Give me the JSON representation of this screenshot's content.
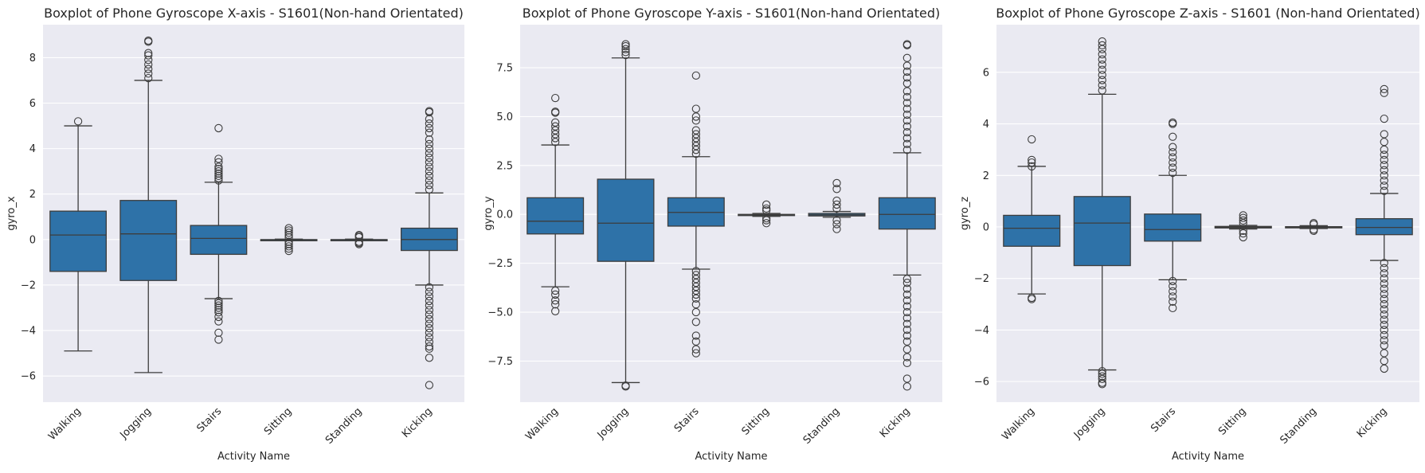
{
  "chart_data": [
    {
      "type": "boxplot",
      "title": "Boxplot of Phone Gyroscope X-axis - S1601(Non-hand Orientated)",
      "xlabel": "Activity Name",
      "ylabel": "gyro_x",
      "categories": [
        "Walking",
        "Jogging",
        "Stairs",
        "Sitting",
        "Standing",
        "Kicking"
      ],
      "yticks": [
        "−6",
        "−4",
        "−2",
        "0",
        "2",
        "4",
        "6",
        "8"
      ],
      "ytick_values": [
        -6,
        -4,
        -2,
        0,
        2,
        4,
        6,
        8
      ],
      "ylim": [
        -7.15,
        9.45
      ],
      "grid": true,
      "box_color": "#2e72a8",
      "boxes": [
        {
          "whisker_low": -4.9,
          "q1": -1.4,
          "median": 0.2,
          "q3": 1.25,
          "whisker_high": 5.0,
          "outliers": [
            5.2
          ]
        },
        {
          "whisker_low": -5.85,
          "q1": -1.8,
          "median": 0.25,
          "q3": 1.72,
          "whisker_high": 7.0,
          "outliers": [
            7.1,
            7.3,
            7.5,
            7.7,
            7.9,
            8.1,
            8.2,
            8.7,
            8.75
          ]
        },
        {
          "whisker_low": -2.6,
          "q1": -0.65,
          "median": 0.05,
          "q3": 0.62,
          "whisker_high": 2.52,
          "outliers": [
            -2.7,
            -2.8,
            -2.9,
            -3.0,
            -3.1,
            -3.2,
            -3.4,
            -3.6,
            -4.1,
            -4.4,
            2.6,
            2.7,
            2.8,
            2.9,
            3.0,
            3.1,
            3.2,
            3.4,
            3.55,
            4.9
          ]
        },
        {
          "whisker_low": -0.05,
          "q1": -0.03,
          "median": -0.01,
          "q3": 0.0,
          "whisker_high": 0.02,
          "outliers": [
            -0.1,
            -0.2,
            -0.3,
            -0.4,
            -0.5,
            0.1,
            0.2,
            0.3,
            0.4,
            0.5
          ]
        },
        {
          "whisker_low": -0.05,
          "q1": -0.03,
          "median": -0.01,
          "q3": 0.0,
          "whisker_high": 0.02,
          "outliers": [
            -0.1,
            -0.15,
            -0.2,
            0.1,
            0.15,
            0.2
          ]
        },
        {
          "whisker_low": -2.0,
          "q1": -0.48,
          "median": 0.0,
          "q3": 0.5,
          "whisker_high": 2.05,
          "outliers": [
            -2.1,
            -2.3,
            -2.5,
            -2.7,
            -2.9,
            -3.1,
            -3.3,
            -3.5,
            -3.7,
            -3.9,
            -4.1,
            -4.3,
            -4.5,
            -4.7,
            -4.8,
            -5.2,
            -6.4,
            2.2,
            2.4,
            2.6,
            2.8,
            3.0,
            3.2,
            3.4,
            3.6,
            3.8,
            4.0,
            4.2,
            4.4,
            4.7,
            4.9,
            5.1,
            5.3,
            5.6,
            5.65
          ]
        }
      ]
    },
    {
      "type": "boxplot",
      "title": "Boxplot of Phone Gyroscope Y-axis - S1601(Non-hand Orientated)",
      "xlabel": "Activity Name",
      "ylabel": "gyro_y",
      "categories": [
        "Walking",
        "Jogging",
        "Stairs",
        "Sitting",
        "Standing",
        "Kicking"
      ],
      "yticks": [
        "−7.5",
        "−5.0",
        "−2.5",
        "0.0",
        "2.5",
        "5.0",
        "7.5"
      ],
      "ytick_values": [
        -7.5,
        -5.0,
        -2.5,
        0.0,
        2.5,
        5.0,
        7.5
      ],
      "ylim": [
        -9.6,
        9.7
      ],
      "grid": true,
      "box_color": "#2e72a8",
      "boxes": [
        {
          "whisker_low": -3.7,
          "q1": -1.0,
          "median": -0.35,
          "q3": 0.85,
          "whisker_high": 3.55,
          "outliers": [
            -3.9,
            -4.1,
            -4.4,
            -4.6,
            -4.95,
            3.7,
            3.9,
            4.1,
            4.3,
            4.5,
            4.7,
            5.2,
            5.25,
            5.95
          ]
        },
        {
          "whisker_low": -8.6,
          "q1": -2.4,
          "median": -0.45,
          "q3": 1.8,
          "whisker_high": 8.0,
          "outliers": [
            -8.75,
            -8.8,
            8.15,
            8.3,
            8.45,
            8.6,
            8.7
          ]
        },
        {
          "whisker_low": -2.8,
          "q1": -0.6,
          "median": 0.1,
          "q3": 0.85,
          "whisker_high": 2.95,
          "outliers": [
            -2.9,
            -3.1,
            -3.3,
            -3.5,
            -3.7,
            -3.9,
            -4.1,
            -4.3,
            -4.6,
            -5.0,
            -5.5,
            -6.2,
            -6.5,
            -6.9,
            -7.1,
            3.1,
            3.3,
            3.5,
            3.7,
            3.9,
            4.1,
            4.3,
            4.8,
            5.0,
            5.4,
            7.1
          ]
        },
        {
          "whisker_low": -0.1,
          "q1": -0.05,
          "median": -0.02,
          "q3": 0.0,
          "whisker_high": 0.05,
          "outliers": [
            -0.2,
            -0.3,
            -0.45,
            0.2,
            0.3,
            0.5
          ]
        },
        {
          "whisker_low": -0.15,
          "q1": -0.08,
          "median": -0.02,
          "q3": 0.05,
          "whisker_high": 0.15,
          "outliers": [
            -0.3,
            -0.5,
            -0.75,
            0.3,
            0.5,
            0.7,
            1.3,
            1.6
          ]
        },
        {
          "whisker_low": -3.1,
          "q1": -0.75,
          "median": 0.0,
          "q3": 0.85,
          "whisker_high": 3.15,
          "outliers": [
            -3.3,
            -3.5,
            -3.8,
            -4.1,
            -4.4,
            -4.7,
            -5.0,
            -5.3,
            -5.6,
            -5.9,
            -6.2,
            -6.5,
            -6.9,
            -7.3,
            -7.6,
            -8.4,
            -8.8,
            3.3,
            3.6,
            3.9,
            4.2,
            4.5,
            4.8,
            5.1,
            5.4,
            5.7,
            6.0,
            6.3,
            6.7,
            7.0,
            7.3,
            7.6,
            8.0,
            8.65,
            8.7
          ]
        }
      ]
    },
    {
      "type": "boxplot",
      "title": "Boxplot of Phone Gyroscope Z-axis - S1601 (Non-hand Orientated)",
      "xlabel": "Activity Name",
      "ylabel": "gyro_z",
      "categories": [
        "Walking",
        "Jogging",
        "Stairs",
        "Sitting",
        "Standing",
        "Kicking"
      ],
      "yticks": [
        "−6",
        "−4",
        "−2",
        "0",
        "2",
        "4",
        "6"
      ],
      "ytick_values": [
        -6,
        -4,
        -2,
        0,
        2,
        4,
        6
      ],
      "ylim": [
        -6.8,
        7.85
      ],
      "grid": true,
      "box_color": "#2e72a8",
      "boxes": [
        {
          "whisker_low": -2.6,
          "q1": -0.75,
          "median": -0.05,
          "q3": 0.45,
          "whisker_high": 2.35,
          "outliers": [
            -2.75,
            -2.8,
            2.35,
            2.5,
            2.6,
            3.4
          ]
        },
        {
          "whisker_low": -5.55,
          "q1": -1.5,
          "median": 0.15,
          "q3": 1.18,
          "whisker_high": 5.15,
          "outliers": [
            -5.6,
            -5.7,
            -5.8,
            -5.9,
            -6.05,
            -6.1,
            5.3,
            5.5,
            5.7,
            5.9,
            6.1,
            6.3,
            6.5,
            6.7,
            6.9,
            7.05,
            7.2
          ]
        },
        {
          "whisker_low": -2.05,
          "q1": -0.55,
          "median": -0.1,
          "q3": 0.5,
          "whisker_high": 2.0,
          "outliers": [
            -2.1,
            -2.3,
            -2.5,
            -2.7,
            -2.9,
            -3.15,
            2.1,
            2.3,
            2.5,
            2.7,
            2.9,
            3.1,
            3.5,
            4.0,
            4.05
          ]
        },
        {
          "whisker_low": -0.08,
          "q1": -0.04,
          "median": -0.01,
          "q3": 0.02,
          "whisker_high": 0.06,
          "outliers": [
            -0.15,
            -0.25,
            -0.4,
            0.15,
            0.25,
            0.35,
            0.45
          ]
        },
        {
          "whisker_low": -0.06,
          "q1": -0.03,
          "median": -0.01,
          "q3": 0.01,
          "whisker_high": 0.05,
          "outliers": [
            -0.1,
            -0.15,
            0.1,
            0.15
          ]
        },
        {
          "whisker_low": -1.3,
          "q1": -0.3,
          "median": -0.02,
          "q3": 0.32,
          "whisker_high": 1.3,
          "outliers": [
            -1.4,
            -1.6,
            -1.8,
            -2.0,
            -2.2,
            -2.4,
            -2.6,
            -2.8,
            -3.0,
            -3.2,
            -3.4,
            -3.6,
            -3.8,
            -4.0,
            -4.2,
            -4.4,
            -4.6,
            -4.9,
            -5.2,
            -5.5,
            1.4,
            1.6,
            1.8,
            2.0,
            2.2,
            2.4,
            2.6,
            2.8,
            3.0,
            3.3,
            3.6,
            4.2,
            5.2,
            5.35
          ]
        }
      ]
    }
  ]
}
